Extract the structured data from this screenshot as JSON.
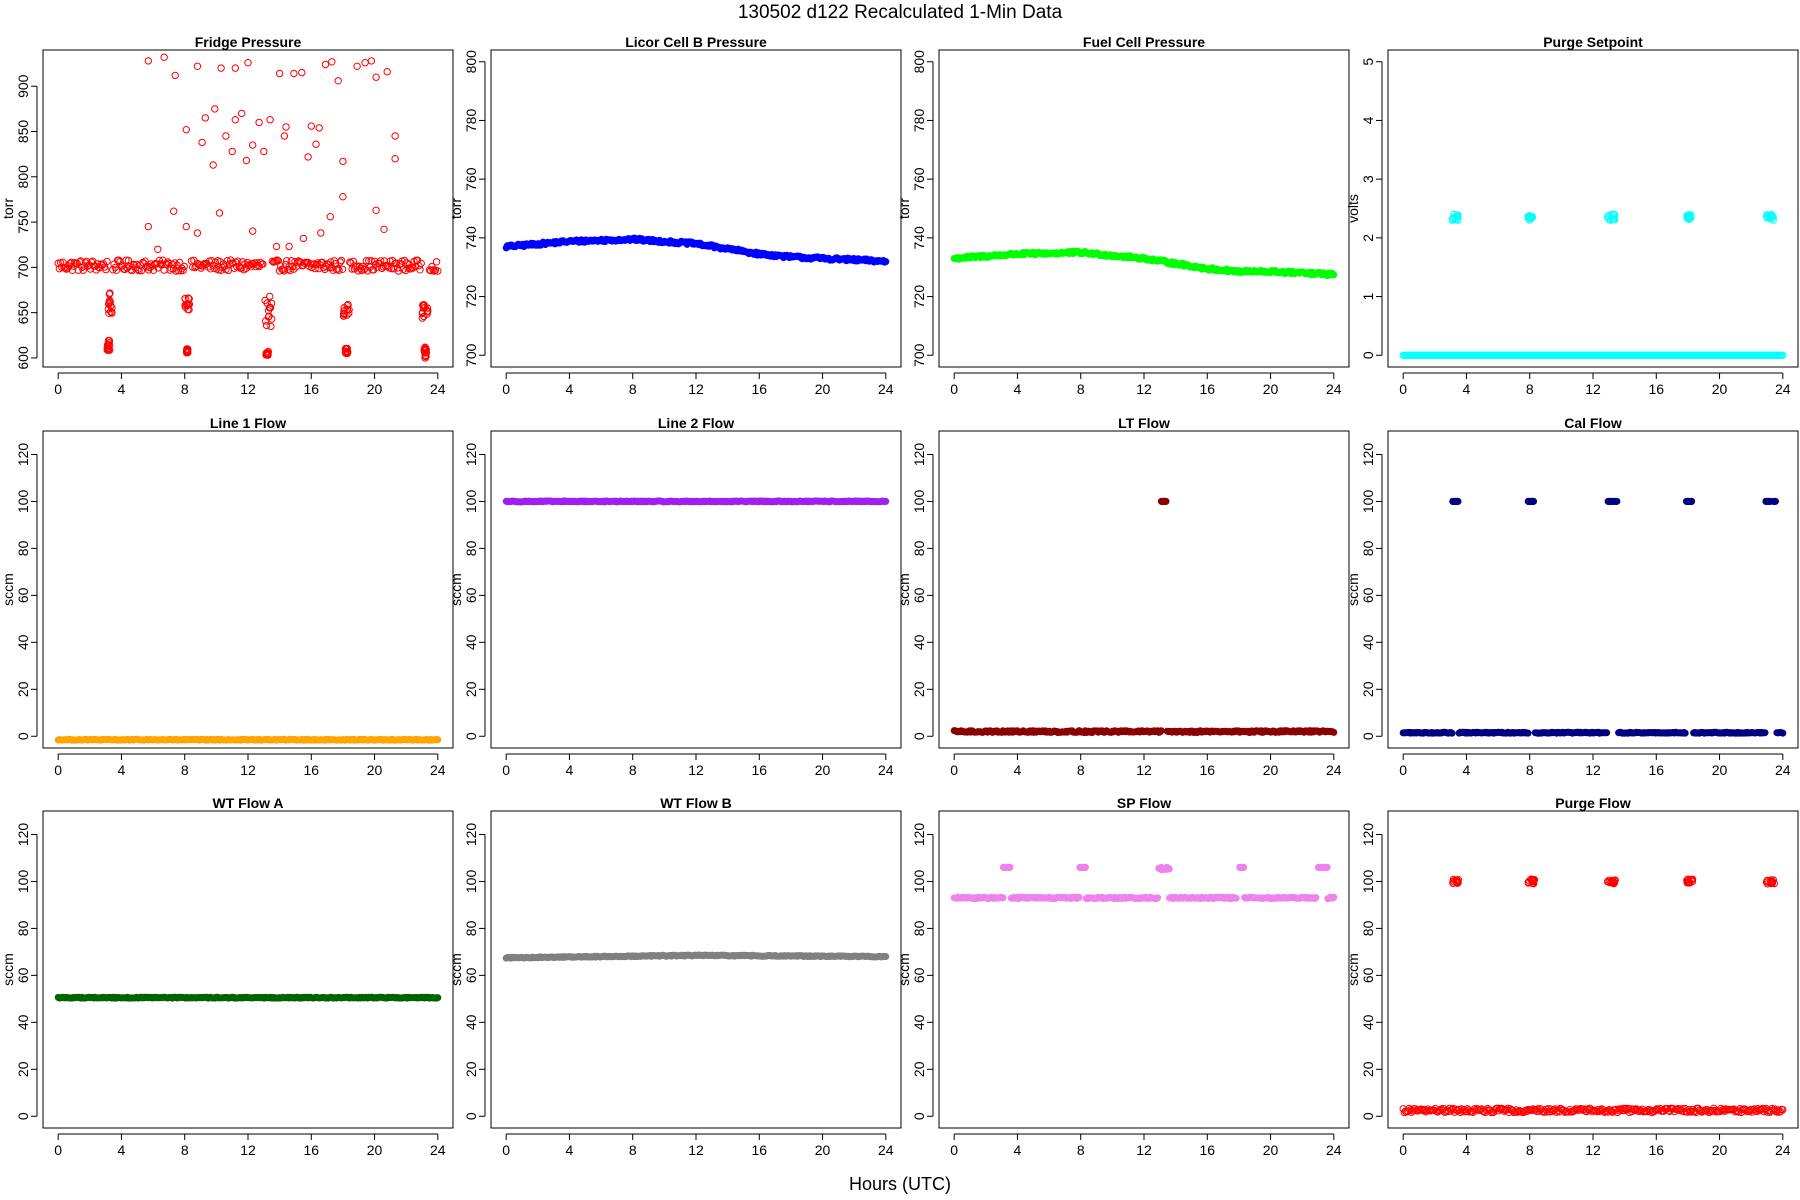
{
  "figure": {
    "title": "130502   d122   Recalculated 1-Min Data",
    "xlabel": "Hours (UTC)"
  },
  "chart_data": [
    {
      "type": "scatter",
      "title": "Fridge Pressure",
      "ylabel": "torr",
      "color": "#ff0000",
      "marker": "open",
      "xlim": [
        -0.96,
        24.96
      ],
      "ylim": [
        590,
        940
      ],
      "xticks": [
        0,
        4,
        8,
        12,
        16,
        20,
        24
      ],
      "yticks": [
        600,
        650,
        700,
        750,
        800,
        850,
        900
      ],
      "baselines": [
        {
          "y": 702,
          "noise": 6,
          "gaps": [
            [
              3.1,
              3.4
            ],
            [
              8.0,
              8.4
            ],
            [
              13.0,
              13.5
            ],
            [
              18.0,
              18.4
            ],
            [
              23.0,
              23.4
            ]
          ]
        }
      ],
      "clusters": [
        {
          "x": [
            3.1,
            3.4
          ],
          "y": [
            648,
            672
          ]
        },
        {
          "x": [
            3.1,
            3.3
          ],
          "y": [
            608,
            620
          ]
        },
        {
          "x": [
            8.0,
            8.3
          ],
          "y": [
            652,
            667
          ]
        },
        {
          "x": [
            8.1,
            8.2
          ],
          "y": [
            605,
            610
          ]
        },
        {
          "x": [
            13.0,
            13.5
          ],
          "y": [
            632,
            668
          ]
        },
        {
          "x": [
            13.1,
            13.3
          ],
          "y": [
            603,
            608
          ]
        },
        {
          "x": [
            18.0,
            18.4
          ],
          "y": [
            645,
            660
          ]
        },
        {
          "x": [
            18.1,
            18.3
          ],
          "y": [
            605,
            612
          ]
        },
        {
          "x": [
            23.0,
            23.4
          ],
          "y": [
            640,
            660
          ]
        },
        {
          "x": [
            23.1,
            23.3
          ],
          "y": [
            600,
            612
          ]
        }
      ],
      "points": [
        {
          "x": 5.7,
          "y": 928
        },
        {
          "x": 6.7,
          "y": 932
        },
        {
          "x": 7.4,
          "y": 912
        },
        {
          "x": 8.8,
          "y": 922
        },
        {
          "x": 10.3,
          "y": 920
        },
        {
          "x": 11.2,
          "y": 920
        },
        {
          "x": 12.0,
          "y": 926
        },
        {
          "x": 14.0,
          "y": 914
        },
        {
          "x": 14.9,
          "y": 914
        },
        {
          "x": 15.4,
          "y": 915
        },
        {
          "x": 16.9,
          "y": 924
        },
        {
          "x": 17.3,
          "y": 927
        },
        {
          "x": 17.7,
          "y": 906
        },
        {
          "x": 18.9,
          "y": 922
        },
        {
          "x": 19.4,
          "y": 926
        },
        {
          "x": 19.8,
          "y": 928
        },
        {
          "x": 20.1,
          "y": 910
        },
        {
          "x": 20.8,
          "y": 916
        },
        {
          "x": 8.1,
          "y": 852
        },
        {
          "x": 9.1,
          "y": 838
        },
        {
          "x": 9.3,
          "y": 865
        },
        {
          "x": 9.9,
          "y": 875
        },
        {
          "x": 9.8,
          "y": 813
        },
        {
          "x": 10.6,
          "y": 845
        },
        {
          "x": 11.0,
          "y": 828
        },
        {
          "x": 11.2,
          "y": 863
        },
        {
          "x": 11.6,
          "y": 870
        },
        {
          "x": 11.9,
          "y": 818
        },
        {
          "x": 12.3,
          "y": 835
        },
        {
          "x": 12.7,
          "y": 860
        },
        {
          "x": 13.0,
          "y": 828
        },
        {
          "x": 13.4,
          "y": 863
        },
        {
          "x": 14.3,
          "y": 845
        },
        {
          "x": 14.4,
          "y": 855
        },
        {
          "x": 15.8,
          "y": 822
        },
        {
          "x": 16.0,
          "y": 856
        },
        {
          "x": 16.3,
          "y": 836
        },
        {
          "x": 16.5,
          "y": 854
        },
        {
          "x": 18.0,
          "y": 817
        },
        {
          "x": 21.3,
          "y": 845
        },
        {
          "x": 21.3,
          "y": 820
        },
        {
          "x": 5.7,
          "y": 745
        },
        {
          "x": 7.3,
          "y": 762
        },
        {
          "x": 8.1,
          "y": 745
        },
        {
          "x": 8.8,
          "y": 738
        },
        {
          "x": 10.2,
          "y": 760
        },
        {
          "x": 12.3,
          "y": 740
        },
        {
          "x": 13.8,
          "y": 723
        },
        {
          "x": 14.6,
          "y": 723
        },
        {
          "x": 15.5,
          "y": 732
        },
        {
          "x": 16.6,
          "y": 738
        },
        {
          "x": 17.2,
          "y": 756
        },
        {
          "x": 18.0,
          "y": 778
        },
        {
          "x": 20.1,
          "y": 763
        },
        {
          "x": 20.6,
          "y": 742
        },
        {
          "x": 6.3,
          "y": 720
        }
      ]
    },
    {
      "type": "scatter",
      "title": "Licor Cell B Pressure",
      "ylabel": "torr",
      "color": "#0000ff",
      "marker": "filled",
      "xlim": [
        -0.96,
        24.96
      ],
      "ylim": [
        696,
        804
      ],
      "xticks": [
        0,
        4,
        8,
        12,
        16,
        20,
        24
      ],
      "yticks": [
        700,
        720,
        740,
        760,
        780,
        800
      ],
      "baselines": [
        {
          "x": [
            0,
            4,
            8,
            12,
            16,
            18,
            20,
            24
          ],
          "y": [
            737,
            738.8,
            739.5,
            738,
            734.5,
            733.5,
            733,
            732
          ],
          "noise": 0.5,
          "gaps": []
        }
      ],
      "clusters": [],
      "points": []
    },
    {
      "type": "scatter",
      "title": "Fuel Cell Pressure",
      "ylabel": "torr",
      "color": "#00ff00",
      "marker": "filled",
      "xlim": [
        -0.96,
        24.96
      ],
      "ylim": [
        696,
        804
      ],
      "xticks": [
        0,
        4,
        8,
        12,
        16,
        20,
        24
      ],
      "yticks": [
        700,
        720,
        740,
        760,
        780,
        800
      ],
      "baselines": [
        {
          "x": [
            0,
            4,
            8,
            12,
            16,
            18,
            20,
            24
          ],
          "y": [
            733,
            734.5,
            735,
            733,
            729.5,
            728.5,
            728.5,
            727.5
          ],
          "noise": 0.5,
          "gaps": []
        }
      ],
      "clusters": [],
      "points": []
    },
    {
      "type": "scatter",
      "title": "Purge Setpoint",
      "ylabel": "volts",
      "color": "#00ffff",
      "marker": "open",
      "xlim": [
        -0.96,
        24.96
      ],
      "ylim": [
        -0.2,
        5.2
      ],
      "xticks": [
        0,
        4,
        8,
        12,
        16,
        20,
        24
      ],
      "yticks": [
        0,
        1,
        2,
        3,
        4,
        5
      ],
      "baselines": [
        {
          "y": 0.0,
          "noise": 0,
          "gaps": []
        }
      ],
      "clusters": [
        {
          "x": [
            3.1,
            3.5
          ],
          "y": [
            2.3,
            2.4
          ]
        },
        {
          "x": [
            7.9,
            8.2
          ],
          "y": [
            2.3,
            2.4
          ]
        },
        {
          "x": [
            12.9,
            13.4
          ],
          "y": [
            2.3,
            2.4
          ]
        },
        {
          "x": [
            17.9,
            18.2
          ],
          "y": [
            2.3,
            2.4
          ]
        },
        {
          "x": [
            22.9,
            23.4
          ],
          "y": [
            2.3,
            2.4
          ]
        }
      ],
      "points": []
    },
    {
      "type": "scatter",
      "title": "Line 1 Flow",
      "ylabel": "sccm",
      "color": "#ffa500",
      "marker": "filled",
      "xlim": [
        -0.96,
        24.96
      ],
      "ylim": [
        -5,
        130
      ],
      "xticks": [
        0,
        4,
        8,
        12,
        16,
        20,
        24
      ],
      "yticks": [
        0,
        20,
        40,
        60,
        80,
        100,
        120
      ],
      "baselines": [
        {
          "y": -1.5,
          "noise": 0.2,
          "gaps": []
        }
      ],
      "clusters": [],
      "points": []
    },
    {
      "type": "scatter",
      "title": "Line 2 Flow",
      "ylabel": "sccm",
      "color": "#a020f0",
      "marker": "filled",
      "xlim": [
        -0.96,
        24.96
      ],
      "ylim": [
        -5,
        130
      ],
      "xticks": [
        0,
        4,
        8,
        12,
        16,
        20,
        24
      ],
      "yticks": [
        0,
        20,
        40,
        60,
        80,
        100,
        120
      ],
      "baselines": [
        {
          "y": 100,
          "noise": 0.2,
          "gaps": []
        }
      ],
      "clusters": [],
      "points": []
    },
    {
      "type": "scatter",
      "title": "LT Flow",
      "ylabel": "sccm",
      "color": "#8b0000",
      "marker": "filled",
      "xlim": [
        -0.96,
        24.96
      ],
      "ylim": [
        -5,
        130
      ],
      "xticks": [
        0,
        4,
        8,
        12,
        16,
        20,
        24
      ],
      "yticks": [
        0,
        20,
        40,
        60,
        80,
        100,
        120
      ],
      "baselines": [
        {
          "y": 2,
          "noise": 0.4,
          "gaps": [
            [
              13.1,
              13.4
            ]
          ]
        }
      ],
      "clusters": [
        {
          "x": [
            13.1,
            13.4
          ],
          "y": [
            100,
            100
          ]
        }
      ],
      "points": []
    },
    {
      "type": "scatter",
      "title": "Cal Flow",
      "ylabel": "sccm",
      "color": "#000080",
      "marker": "filled",
      "xlim": [
        -0.96,
        24.96
      ],
      "ylim": [
        -5,
        130
      ],
      "xticks": [
        0,
        4,
        8,
        12,
        16,
        20,
        24
      ],
      "yticks": [
        0,
        20,
        40,
        60,
        80,
        100,
        120
      ],
      "baselines": [
        {
          "y": 1.5,
          "noise": 0.2,
          "gaps": [
            [
              3.1,
              3.5
            ],
            [
              7.9,
              8.3
            ],
            [
              12.9,
              13.6
            ],
            [
              17.9,
              18.3
            ],
            [
              22.9,
              23.6
            ]
          ]
        }
      ],
      "clusters": [
        {
          "x": [
            3.1,
            3.5
          ],
          "y": [
            100,
            100
          ]
        },
        {
          "x": [
            7.9,
            8.3
          ],
          "y": [
            100,
            100
          ]
        },
        {
          "x": [
            12.9,
            13.6
          ],
          "y": [
            100,
            100
          ]
        },
        {
          "x": [
            17.9,
            18.3
          ],
          "y": [
            100,
            100
          ]
        },
        {
          "x": [
            22.9,
            23.6
          ],
          "y": [
            100,
            100
          ]
        }
      ],
      "points": []
    },
    {
      "type": "scatter",
      "title": "WT Flow A",
      "ylabel": "sccm",
      "color": "#006400",
      "marker": "filled",
      "xlim": [
        -0.96,
        24.96
      ],
      "ylim": [
        -5,
        130
      ],
      "xticks": [
        0,
        4,
        8,
        12,
        16,
        20,
        24
      ],
      "yticks": [
        0,
        20,
        40,
        60,
        80,
        100,
        120
      ],
      "baselines": [
        {
          "y": 50.5,
          "noise": 0.2,
          "gaps": []
        }
      ],
      "clusters": [],
      "points": []
    },
    {
      "type": "scatter",
      "title": "WT Flow B",
      "ylabel": "sccm",
      "color": "#808080",
      "marker": "filled",
      "xlim": [
        -0.96,
        24.96
      ],
      "ylim": [
        -5,
        130
      ],
      "xticks": [
        0,
        4,
        8,
        12,
        16,
        20,
        24
      ],
      "yticks": [
        0,
        20,
        40,
        60,
        80,
        100,
        120
      ],
      "baselines": [
        {
          "x": [
            0,
            12,
            24
          ],
          "y": [
            67.5,
            68.5,
            68
          ],
          "noise": 0.2,
          "gaps": []
        }
      ],
      "clusters": [],
      "points": []
    },
    {
      "type": "scatter",
      "title": "SP Flow",
      "ylabel": "sccm",
      "color": "#ee82ee",
      "marker": "filled",
      "xlim": [
        -0.96,
        24.96
      ],
      "ylim": [
        -5,
        130
      ],
      "xticks": [
        0,
        4,
        8,
        12,
        16,
        20,
        24
      ],
      "yticks": [
        0,
        20,
        40,
        60,
        80,
        100,
        120
      ],
      "baselines": [
        {
          "y": 93,
          "noise": 0.3,
          "gaps": [
            [
              3.1,
              3.6
            ],
            [
              7.9,
              8.3
            ],
            [
              12.9,
              13.6
            ],
            [
              17.9,
              18.3
            ],
            [
              22.9,
              23.6
            ]
          ]
        }
      ],
      "clusters": [
        {
          "x": [
            3.1,
            3.6
          ],
          "y": [
            106,
            106
          ]
        },
        {
          "x": [
            7.9,
            8.3
          ],
          "y": [
            106,
            106
          ]
        },
        {
          "x": [
            12.9,
            13.6
          ],
          "y": [
            105,
            106
          ]
        },
        {
          "x": [
            17.9,
            18.3
          ],
          "y": [
            106,
            106
          ]
        },
        {
          "x": [
            22.9,
            23.6
          ],
          "y": [
            106,
            106
          ]
        }
      ],
      "points": []
    },
    {
      "type": "scatter",
      "title": "Purge Flow",
      "ylabel": "sccm",
      "color": "#ff0000",
      "marker": "open",
      "xlim": [
        -0.96,
        24.96
      ],
      "ylim": [
        -5,
        130
      ],
      "xticks": [
        0,
        4,
        8,
        12,
        16,
        20,
        24
      ],
      "yticks": [
        0,
        20,
        40,
        60,
        80,
        100,
        120
      ],
      "baselines": [
        {
          "y": 2.5,
          "noise": 0.9,
          "gaps": []
        }
      ],
      "clusters": [
        {
          "x": [
            3.1,
            3.5
          ],
          "y": [
            99,
            101
          ]
        },
        {
          "x": [
            7.9,
            8.3
          ],
          "y": [
            99,
            101
          ]
        },
        {
          "x": [
            12.9,
            13.5
          ],
          "y": [
            99,
            101
          ]
        },
        {
          "x": [
            17.9,
            18.3
          ],
          "y": [
            99,
            101
          ]
        },
        {
          "x": [
            22.9,
            23.5
          ],
          "y": [
            99,
            101
          ]
        }
      ],
      "points": []
    }
  ]
}
